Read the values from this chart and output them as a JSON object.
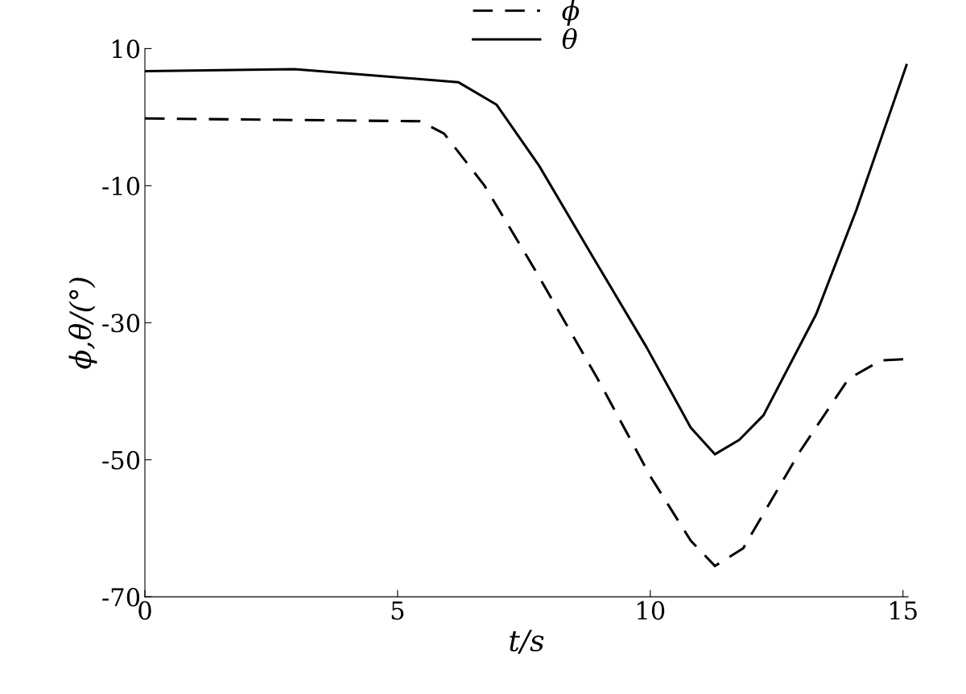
{
  "chart_data": {
    "type": "line",
    "xlabel": "t/s",
    "ylabel": "ϕ,θ/(°)",
    "xlim": [
      0,
      15.1
    ],
    "ylim": [
      -70,
      10
    ],
    "xticks": [
      0,
      5,
      10,
      15
    ],
    "yticks": [
      -70,
      -50,
      -30,
      -10,
      10
    ],
    "grid": false,
    "legend": "top",
    "marker": "none",
    "series": [
      {
        "name": "ϕ",
        "color": "#000000",
        "line_style": "dashed",
        "x": [
          0,
          5.44,
          5.92,
          6.72,
          7.68,
          8.96,
          10.0,
          10.8,
          11.28,
          11.84,
          12.96,
          13.92,
          14.56,
          15.07
        ],
        "values": [
          -0.2,
          -0.6,
          -2.4,
          -10,
          -21.8,
          -38.2,
          -52.4,
          -61.8,
          -65.5,
          -62.9,
          -48.8,
          -38.2,
          -35.5,
          -35.3
        ]
      },
      {
        "name": "θ",
        "color": "#000000",
        "line_style": "solid",
        "x": [
          0,
          2.96,
          6.2,
          6.96,
          7.8,
          8.88,
          9.92,
          10.8,
          11.28,
          11.76,
          12.24,
          13.28,
          14.08,
          15.07
        ],
        "values": [
          6.7,
          7.0,
          5.1,
          1.8,
          -7.1,
          -20.6,
          -33.5,
          -45.3,
          -49.2,
          -47.1,
          -43.5,
          -28.8,
          -13.5,
          7.6
        ]
      }
    ]
  }
}
